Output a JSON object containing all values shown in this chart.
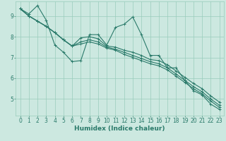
{
  "xlabel": "Humidex (Indice chaleur)",
  "x_values": [
    0,
    1,
    2,
    3,
    4,
    5,
    6,
    7,
    8,
    9,
    10,
    11,
    12,
    13,
    14,
    15,
    16,
    17,
    18,
    19,
    20,
    21,
    22,
    23
  ],
  "series": [
    [
      9.35,
      9.1,
      9.5,
      8.8,
      7.6,
      7.25,
      6.8,
      6.85,
      8.1,
      8.1,
      7.6,
      8.45,
      8.6,
      8.95,
      8.1,
      7.1,
      7.1,
      6.5,
      6.5,
      5.9,
      5.4,
      5.2,
      4.75,
      4.5
    ],
    [
      9.35,
      9.0,
      8.75,
      8.5,
      8.2,
      7.85,
      7.55,
      7.95,
      8.0,
      7.9,
      7.55,
      7.5,
      7.35,
      7.25,
      7.1,
      6.9,
      6.85,
      6.65,
      6.35,
      6.05,
      5.75,
      5.5,
      5.15,
      4.85
    ],
    [
      9.35,
      9.0,
      8.75,
      8.5,
      8.2,
      7.85,
      7.55,
      7.75,
      7.85,
      7.75,
      7.5,
      7.4,
      7.25,
      7.1,
      6.95,
      6.8,
      6.7,
      6.5,
      6.2,
      5.9,
      5.6,
      5.35,
      5.0,
      4.7
    ],
    [
      9.35,
      9.0,
      8.75,
      8.5,
      8.2,
      7.85,
      7.55,
      7.65,
      7.75,
      7.65,
      7.45,
      7.35,
      7.15,
      7.0,
      6.85,
      6.7,
      6.6,
      6.4,
      6.1,
      5.8,
      5.5,
      5.25,
      4.9,
      4.6
    ]
  ],
  "line_color": "#2a7a6a",
  "marker": "+",
  "background_color": "#cce8e0",
  "grid_color": "#99ccbb",
  "ylim": [
    4.2,
    9.7
  ],
  "yticks": [
    5,
    6,
    7,
    8,
    9
  ],
  "label_fontsize": 6.5,
  "tick_fontsize": 5.5
}
